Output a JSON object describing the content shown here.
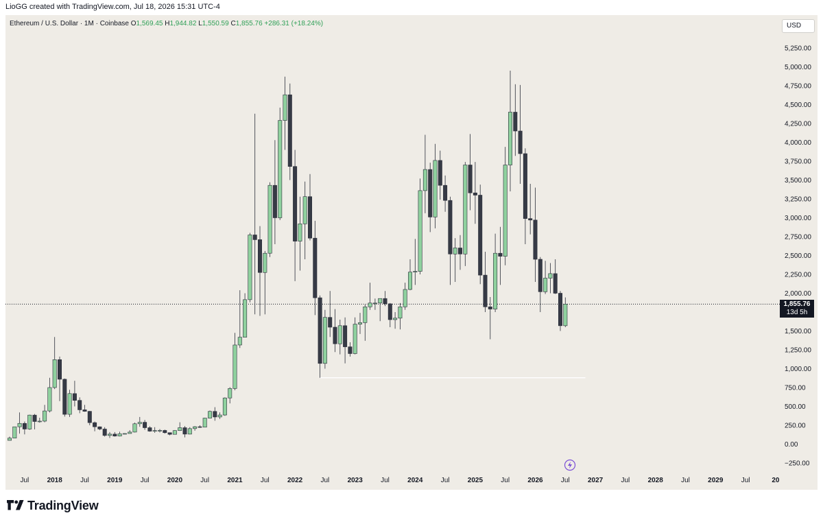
{
  "caption": "LioGG created with TradingView.com, Jul 18, 2026 15:31 UTC-4",
  "legend": {
    "symbol": "Ethereum / U.S. Dollar · 1M · Coinbase",
    "o_label": "O",
    "o": "1,569.45",
    "h_label": "H",
    "h": "1,944.82",
    "l_label": "L",
    "l": "1,550.59",
    "c_label": "C",
    "c": "1,855.76",
    "change": "+286.31 (+18.24%)"
  },
  "currency": "USD",
  "last_price_badge": "1,855.76",
  "time_to_close": "13d 5h",
  "logo_text": "TradingView",
  "colors": {
    "up": "#8fd19e",
    "down": "#363a45",
    "background": "#efece6",
    "accent": "#7b4fd6"
  },
  "chart_data": {
    "type": "candlestick",
    "y_ticks": [
      "5,250.00",
      "5,000.00",
      "4,750.00",
      "4,500.00",
      "4,250.00",
      "4,000.00",
      "3,750.00",
      "3,500.00",
      "3,250.00",
      "3,000.00",
      "2,750.00",
      "2,500.00",
      "2,250.00",
      "2,000.00",
      "1,750.00",
      "1,500.00",
      "1,250.00",
      "1,000.00",
      "750.00",
      "500.00",
      "250.00",
      "0.00",
      "−250.00"
    ],
    "x_ticks": [
      "Jul",
      "2018",
      "Jul",
      "2019",
      "Jul",
      "2020",
      "Jul",
      "2021",
      "Jul",
      "2022",
      "Jul",
      "2023",
      "Jul",
      "2024",
      "Jul",
      "2025",
      "Jul",
      "2026",
      "Jul",
      "2027",
      "Jul",
      "2028",
      "Jul",
      "2029",
      "Jul",
      "20"
    ],
    "ylim": [
      -300,
      5500
    ],
    "horizontal_line": {
      "value": 880,
      "from": "2022-06",
      "to": "2026-11"
    },
    "last_price_line": 1855.76,
    "candles": [
      {
        "t": "2017-04",
        "o": 50,
        "h": 100,
        "l": 48,
        "c": 80
      },
      {
        "t": "2017-05",
        "o": 80,
        "h": 230,
        "l": 78,
        "c": 230
      },
      {
        "t": "2017-06",
        "o": 230,
        "h": 420,
        "l": 140,
        "c": 275
      },
      {
        "t": "2017-07",
        "o": 275,
        "h": 300,
        "l": 130,
        "c": 200
      },
      {
        "t": "2017-08",
        "o": 200,
        "h": 390,
        "l": 190,
        "c": 385
      },
      {
        "t": "2017-09",
        "o": 385,
        "h": 400,
        "l": 195,
        "c": 300
      },
      {
        "t": "2017-10",
        "o": 300,
        "h": 350,
        "l": 285,
        "c": 305
      },
      {
        "t": "2017-11",
        "o": 305,
        "h": 520,
        "l": 290,
        "c": 440
      },
      {
        "t": "2017-12",
        "o": 440,
        "h": 880,
        "l": 420,
        "c": 750
      },
      {
        "t": "2018-01",
        "o": 750,
        "h": 1420,
        "l": 730,
        "c": 1120
      },
      {
        "t": "2018-02",
        "o": 1120,
        "h": 1160,
        "l": 570,
        "c": 860
      },
      {
        "t": "2018-03",
        "o": 860,
        "h": 870,
        "l": 365,
        "c": 395
      },
      {
        "t": "2018-04",
        "o": 395,
        "h": 720,
        "l": 360,
        "c": 670
      },
      {
        "t": "2018-05",
        "o": 670,
        "h": 840,
        "l": 500,
        "c": 580
      },
      {
        "t": "2018-06",
        "o": 580,
        "h": 620,
        "l": 410,
        "c": 455
      },
      {
        "t": "2018-07",
        "o": 455,
        "h": 520,
        "l": 430,
        "c": 435
      },
      {
        "t": "2018-08",
        "o": 435,
        "h": 440,
        "l": 250,
        "c": 285
      },
      {
        "t": "2018-09",
        "o": 285,
        "h": 300,
        "l": 170,
        "c": 230
      },
      {
        "t": "2018-10",
        "o": 230,
        "h": 235,
        "l": 185,
        "c": 200
      },
      {
        "t": "2018-11",
        "o": 200,
        "h": 225,
        "l": 100,
        "c": 115
      },
      {
        "t": "2018-12",
        "o": 115,
        "h": 160,
        "l": 82,
        "c": 133
      },
      {
        "t": "2019-01",
        "o": 133,
        "h": 160,
        "l": 100,
        "c": 107
      },
      {
        "t": "2019-02",
        "o": 107,
        "h": 165,
        "l": 102,
        "c": 137
      },
      {
        "t": "2019-03",
        "o": 137,
        "h": 145,
        "l": 130,
        "c": 141
      },
      {
        "t": "2019-04",
        "o": 141,
        "h": 185,
        "l": 140,
        "c": 160
      },
      {
        "t": "2019-05",
        "o": 160,
        "h": 285,
        "l": 155,
        "c": 270
      },
      {
        "t": "2019-06",
        "o": 270,
        "h": 360,
        "l": 230,
        "c": 290
      },
      {
        "t": "2019-07",
        "o": 290,
        "h": 320,
        "l": 190,
        "c": 218
      },
      {
        "t": "2019-08",
        "o": 218,
        "h": 238,
        "l": 165,
        "c": 172
      },
      {
        "t": "2019-09",
        "o": 172,
        "h": 225,
        "l": 150,
        "c": 180
      },
      {
        "t": "2019-10",
        "o": 180,
        "h": 200,
        "l": 155,
        "c": 182
      },
      {
        "t": "2019-11",
        "o": 182,
        "h": 192,
        "l": 140,
        "c": 152
      },
      {
        "t": "2019-12",
        "o": 152,
        "h": 155,
        "l": 117,
        "c": 130
      },
      {
        "t": "2020-01",
        "o": 130,
        "h": 185,
        "l": 127,
        "c": 180
      },
      {
        "t": "2020-02",
        "o": 180,
        "h": 290,
        "l": 175,
        "c": 218
      },
      {
        "t": "2020-03",
        "o": 218,
        "h": 240,
        "l": 90,
        "c": 133
      },
      {
        "t": "2020-04",
        "o": 133,
        "h": 225,
        "l": 130,
        "c": 206
      },
      {
        "t": "2020-05",
        "o": 206,
        "h": 240,
        "l": 178,
        "c": 231
      },
      {
        "t": "2020-06",
        "o": 231,
        "h": 250,
        "l": 216,
        "c": 225
      },
      {
        "t": "2020-07",
        "o": 225,
        "h": 350,
        "l": 225,
        "c": 345
      },
      {
        "t": "2020-08",
        "o": 345,
        "h": 445,
        "l": 340,
        "c": 434
      },
      {
        "t": "2020-09",
        "o": 434,
        "h": 490,
        "l": 310,
        "c": 360
      },
      {
        "t": "2020-10",
        "o": 360,
        "h": 420,
        "l": 334,
        "c": 386
      },
      {
        "t": "2020-11",
        "o": 386,
        "h": 620,
        "l": 375,
        "c": 612
      },
      {
        "t": "2020-12",
        "o": 612,
        "h": 755,
        "l": 540,
        "c": 737
      },
      {
        "t": "2021-01",
        "o": 737,
        "h": 1475,
        "l": 715,
        "c": 1314
      },
      {
        "t": "2021-02",
        "o": 1314,
        "h": 2040,
        "l": 1275,
        "c": 1417
      },
      {
        "t": "2021-03",
        "o": 1417,
        "h": 2000,
        "l": 1420,
        "c": 1915
      },
      {
        "t": "2021-04",
        "o": 1915,
        "h": 2800,
        "l": 1880,
        "c": 2773
      },
      {
        "t": "2021-05",
        "o": 2773,
        "h": 4380,
        "l": 1720,
        "c": 2710
      },
      {
        "t": "2021-06",
        "o": 2710,
        "h": 2890,
        "l": 1700,
        "c": 2275
      },
      {
        "t": "2021-07",
        "o": 2275,
        "h": 2560,
        "l": 1720,
        "c": 2530
      },
      {
        "t": "2021-08",
        "o": 2530,
        "h": 3470,
        "l": 2480,
        "c": 3430
      },
      {
        "t": "2021-09",
        "o": 3430,
        "h": 4030,
        "l": 2650,
        "c": 3000
      },
      {
        "t": "2021-10",
        "o": 3000,
        "h": 4460,
        "l": 2970,
        "c": 4290
      },
      {
        "t": "2021-11",
        "o": 4290,
        "h": 4870,
        "l": 3900,
        "c": 4630
      },
      {
        "t": "2021-12",
        "o": 4630,
        "h": 4780,
        "l": 3500,
        "c": 3680
      },
      {
        "t": "2022-01",
        "o": 3680,
        "h": 3900,
        "l": 2160,
        "c": 2690
      },
      {
        "t": "2022-02",
        "o": 2690,
        "h": 3280,
        "l": 2300,
        "c": 2920
      },
      {
        "t": "2022-03",
        "o": 2920,
        "h": 3480,
        "l": 2450,
        "c": 3280
      },
      {
        "t": "2022-04",
        "o": 3280,
        "h": 3580,
        "l": 2700,
        "c": 2730
      },
      {
        "t": "2022-05",
        "o": 2730,
        "h": 2960,
        "l": 1710,
        "c": 1940
      },
      {
        "t": "2022-06",
        "o": 1940,
        "h": 1970,
        "l": 880,
        "c": 1070
      },
      {
        "t": "2022-07",
        "o": 1070,
        "h": 1780,
        "l": 1000,
        "c": 1680
      },
      {
        "t": "2022-08",
        "o": 1680,
        "h": 2030,
        "l": 1420,
        "c": 1550
      },
      {
        "t": "2022-09",
        "o": 1550,
        "h": 1790,
        "l": 1220,
        "c": 1330
      },
      {
        "t": "2022-10",
        "o": 1330,
        "h": 1650,
        "l": 1190,
        "c": 1570
      },
      {
        "t": "2022-11",
        "o": 1570,
        "h": 1680,
        "l": 1070,
        "c": 1290
      },
      {
        "t": "2022-12",
        "o": 1290,
        "h": 1350,
        "l": 1160,
        "c": 1200
      },
      {
        "t": "2023-01",
        "o": 1200,
        "h": 1680,
        "l": 1190,
        "c": 1590
      },
      {
        "t": "2023-02",
        "o": 1590,
        "h": 1740,
        "l": 1460,
        "c": 1610
      },
      {
        "t": "2023-03",
        "o": 1610,
        "h": 1850,
        "l": 1370,
        "c": 1820
      },
      {
        "t": "2023-04",
        "o": 1820,
        "h": 2140,
        "l": 1780,
        "c": 1870
      },
      {
        "t": "2023-05",
        "o": 1870,
        "h": 1930,
        "l": 1780,
        "c": 1870
      },
      {
        "t": "2023-06",
        "o": 1870,
        "h": 1930,
        "l": 1630,
        "c": 1930
      },
      {
        "t": "2023-07",
        "o": 1930,
        "h": 2030,
        "l": 1830,
        "c": 1860
      },
      {
        "t": "2023-08",
        "o": 1860,
        "h": 1870,
        "l": 1550,
        "c": 1650
      },
      {
        "t": "2023-09",
        "o": 1650,
        "h": 1750,
        "l": 1530,
        "c": 1670
      },
      {
        "t": "2023-10",
        "o": 1670,
        "h": 1870,
        "l": 1520,
        "c": 1820
      },
      {
        "t": "2023-11",
        "o": 1820,
        "h": 2140,
        "l": 1780,
        "c": 2050
      },
      {
        "t": "2023-12",
        "o": 2050,
        "h": 2450,
        "l": 2040,
        "c": 2280
      },
      {
        "t": "2024-01",
        "o": 2280,
        "h": 2720,
        "l": 2110,
        "c": 2290
      },
      {
        "t": "2024-02",
        "o": 2290,
        "h": 3520,
        "l": 2250,
        "c": 3360
      },
      {
        "t": "2024-03",
        "o": 3360,
        "h": 4100,
        "l": 3060,
        "c": 3640
      },
      {
        "t": "2024-04",
        "o": 3640,
        "h": 3730,
        "l": 2810,
        "c": 3010
      },
      {
        "t": "2024-05",
        "o": 3010,
        "h": 3980,
        "l": 2860,
        "c": 3760
      },
      {
        "t": "2024-06",
        "o": 3760,
        "h": 3890,
        "l": 3240,
        "c": 3430
      },
      {
        "t": "2024-07",
        "o": 3430,
        "h": 3560,
        "l": 3080,
        "c": 3230
      },
      {
        "t": "2024-08",
        "o": 3230,
        "h": 3280,
        "l": 2110,
        "c": 2520
      },
      {
        "t": "2024-09",
        "o": 2520,
        "h": 2730,
        "l": 2150,
        "c": 2600
      },
      {
        "t": "2024-10",
        "o": 2600,
        "h": 2770,
        "l": 2310,
        "c": 2520
      },
      {
        "t": "2024-11",
        "o": 2520,
        "h": 3740,
        "l": 2360,
        "c": 3700
      },
      {
        "t": "2024-12",
        "o": 3700,
        "h": 4110,
        "l": 3100,
        "c": 3330
      },
      {
        "t": "2025-01",
        "o": 3330,
        "h": 3740,
        "l": 2920,
        "c": 3300
      },
      {
        "t": "2025-02",
        "o": 3300,
        "h": 3440,
        "l": 2120,
        "c": 2240
      },
      {
        "t": "2025-03",
        "o": 2240,
        "h": 2550,
        "l": 1750,
        "c": 1820
      },
      {
        "t": "2025-04",
        "o": 1820,
        "h": 1950,
        "l": 1390,
        "c": 1790
      },
      {
        "t": "2025-05",
        "o": 1790,
        "h": 2790,
        "l": 1750,
        "c": 2530
      },
      {
        "t": "2025-06",
        "o": 2530,
        "h": 2880,
        "l": 2110,
        "c": 2490
      },
      {
        "t": "2025-07",
        "o": 2490,
        "h": 3940,
        "l": 2370,
        "c": 3700
      },
      {
        "t": "2025-08",
        "o": 3700,
        "h": 4950,
        "l": 3350,
        "c": 4400
      },
      {
        "t": "2025-09",
        "o": 4400,
        "h": 4770,
        "l": 3820,
        "c": 4150
      },
      {
        "t": "2025-10",
        "o": 4150,
        "h": 4760,
        "l": 3450,
        "c": 3850
      },
      {
        "t": "2025-11",
        "o": 3850,
        "h": 3920,
        "l": 2650,
        "c": 2990
      },
      {
        "t": "2025-12",
        "o": 2990,
        "h": 3450,
        "l": 2780,
        "c": 2970
      },
      {
        "t": "2026-01",
        "o": 2970,
        "h": 3400,
        "l": 2150,
        "c": 2450
      },
      {
        "t": "2026-02",
        "o": 2450,
        "h": 2480,
        "l": 1750,
        "c": 2020
      },
      {
        "t": "2026-03",
        "o": 2020,
        "h": 2430,
        "l": 1990,
        "c": 2200
      },
      {
        "t": "2026-04",
        "o": 2200,
        "h": 2400,
        "l": 2000,
        "c": 2260
      },
      {
        "t": "2026-05",
        "o": 2260,
        "h": 2450,
        "l": 1990,
        "c": 2000
      },
      {
        "t": "2026-06",
        "o": 2000,
        "h": 2030,
        "l": 1500,
        "c": 1569.45
      },
      {
        "t": "2026-07",
        "o": 1569.45,
        "h": 1944.82,
        "l": 1550.59,
        "c": 1855.76
      }
    ]
  }
}
